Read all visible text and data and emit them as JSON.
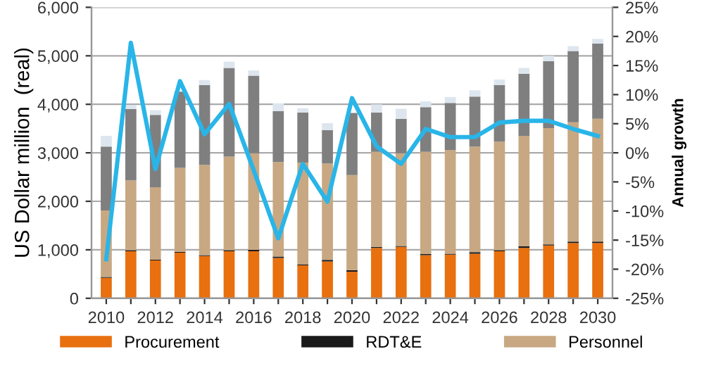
{
  "chart_data": {
    "type": "bar",
    "stacked": true,
    "categories": [
      "2010",
      null,
      "2012",
      null,
      "2014",
      null,
      "2016",
      null,
      "2018",
      null,
      "2020",
      null,
      "2022",
      null,
      "2024",
      null,
      "2026",
      null,
      "2028",
      null,
      "2030"
    ],
    "ylabel": "US Dollar million  (real)",
    "y2label": "Annual growth",
    "ylim": [
      0,
      6000
    ],
    "yticks": [
      0,
      {
        "value": 1000,
        "label": "1,000"
      },
      {
        "value": 2000,
        "label": "2,000"
      },
      {
        "value": 3000,
        "label": "3,000"
      },
      {
        "value": 4000,
        "label": "4,000"
      },
      {
        "value": 5000,
        "label": "5,000"
      },
      {
        "value": 6000,
        "label": "6,000"
      }
    ],
    "y2lim": [
      -25,
      25
    ],
    "y2ticks": [
      {
        "value": -25,
        "label": "-25%"
      },
      {
        "value": -20,
        "label": "-20%"
      },
      {
        "value": -15,
        "label": "-15%"
      },
      {
        "value": -10,
        "label": "-10%"
      },
      {
        "value": -5,
        "label": "-5%"
      },
      {
        "value": 0,
        "label": "0%"
      },
      {
        "value": 5,
        "label": "5%"
      },
      {
        "value": 10,
        "label": "10%"
      },
      {
        "value": 15,
        "label": "15%"
      },
      {
        "value": 20,
        "label": "20%"
      },
      {
        "value": 25,
        "label": "25%"
      }
    ],
    "grid": "y",
    "legend": "bottom",
    "series": [
      {
        "name": "Procurement",
        "color": "#e8700f",
        "values": [
          420,
          970,
          780,
          940,
          870,
          970,
          970,
          830,
          680,
          760,
          550,
          1040,
          1060,
          890,
          900,
          920,
          970,
          1040,
          1090,
          1140,
          1140
        ]
      },
      {
        "name": "RDT&E",
        "color": "#1a1a1a",
        "values": [
          20,
          20,
          20,
          20,
          20,
          20,
          30,
          30,
          20,
          30,
          30,
          20,
          20,
          20,
          20,
          30,
          20,
          30,
          20,
          30,
          30
        ]
      },
      {
        "name": "Personnel",
        "color": "#c8a882",
        "values": [
          1370,
          1440,
          1490,
          1730,
          1860,
          1930,
          1990,
          1950,
          2100,
          1990,
          1960,
          1960,
          1910,
          2110,
          2140,
          2180,
          2240,
          2280,
          2400,
          2460,
          2530
        ]
      },
      {
        "color": "#7f7f7f",
        "values": [
          1320,
          1470,
          1490,
          1570,
          1650,
          1830,
          1600,
          1050,
          1030,
          690,
          1280,
          810,
          710,
          920,
          970,
          1030,
          1170,
          1280,
          1380,
          1470,
          1550
        ]
      },
      {
        "color": "#dde6ee",
        "values": [
          220,
          90,
          100,
          null,
          100,
          130,
          110,
          160,
          90,
          140,
          null,
          170,
          210,
          120,
          120,
          130,
          110,
          120,
          110,
          100,
          100
        ]
      },
      {
        "type": "line",
        "axis": "y2",
        "color": "#29b5e8",
        "values": [
          -18.3,
          18.9,
          -2.8,
          12.3,
          3.2,
          8.4,
          -3.0,
          -14.7,
          -1.9,
          -8.4,
          9.4,
          1.1,
          -1.9,
          4.1,
          2.7,
          2.7,
          5.2,
          5.5,
          5.5,
          4.1,
          2.9
        ]
      }
    ]
  }
}
